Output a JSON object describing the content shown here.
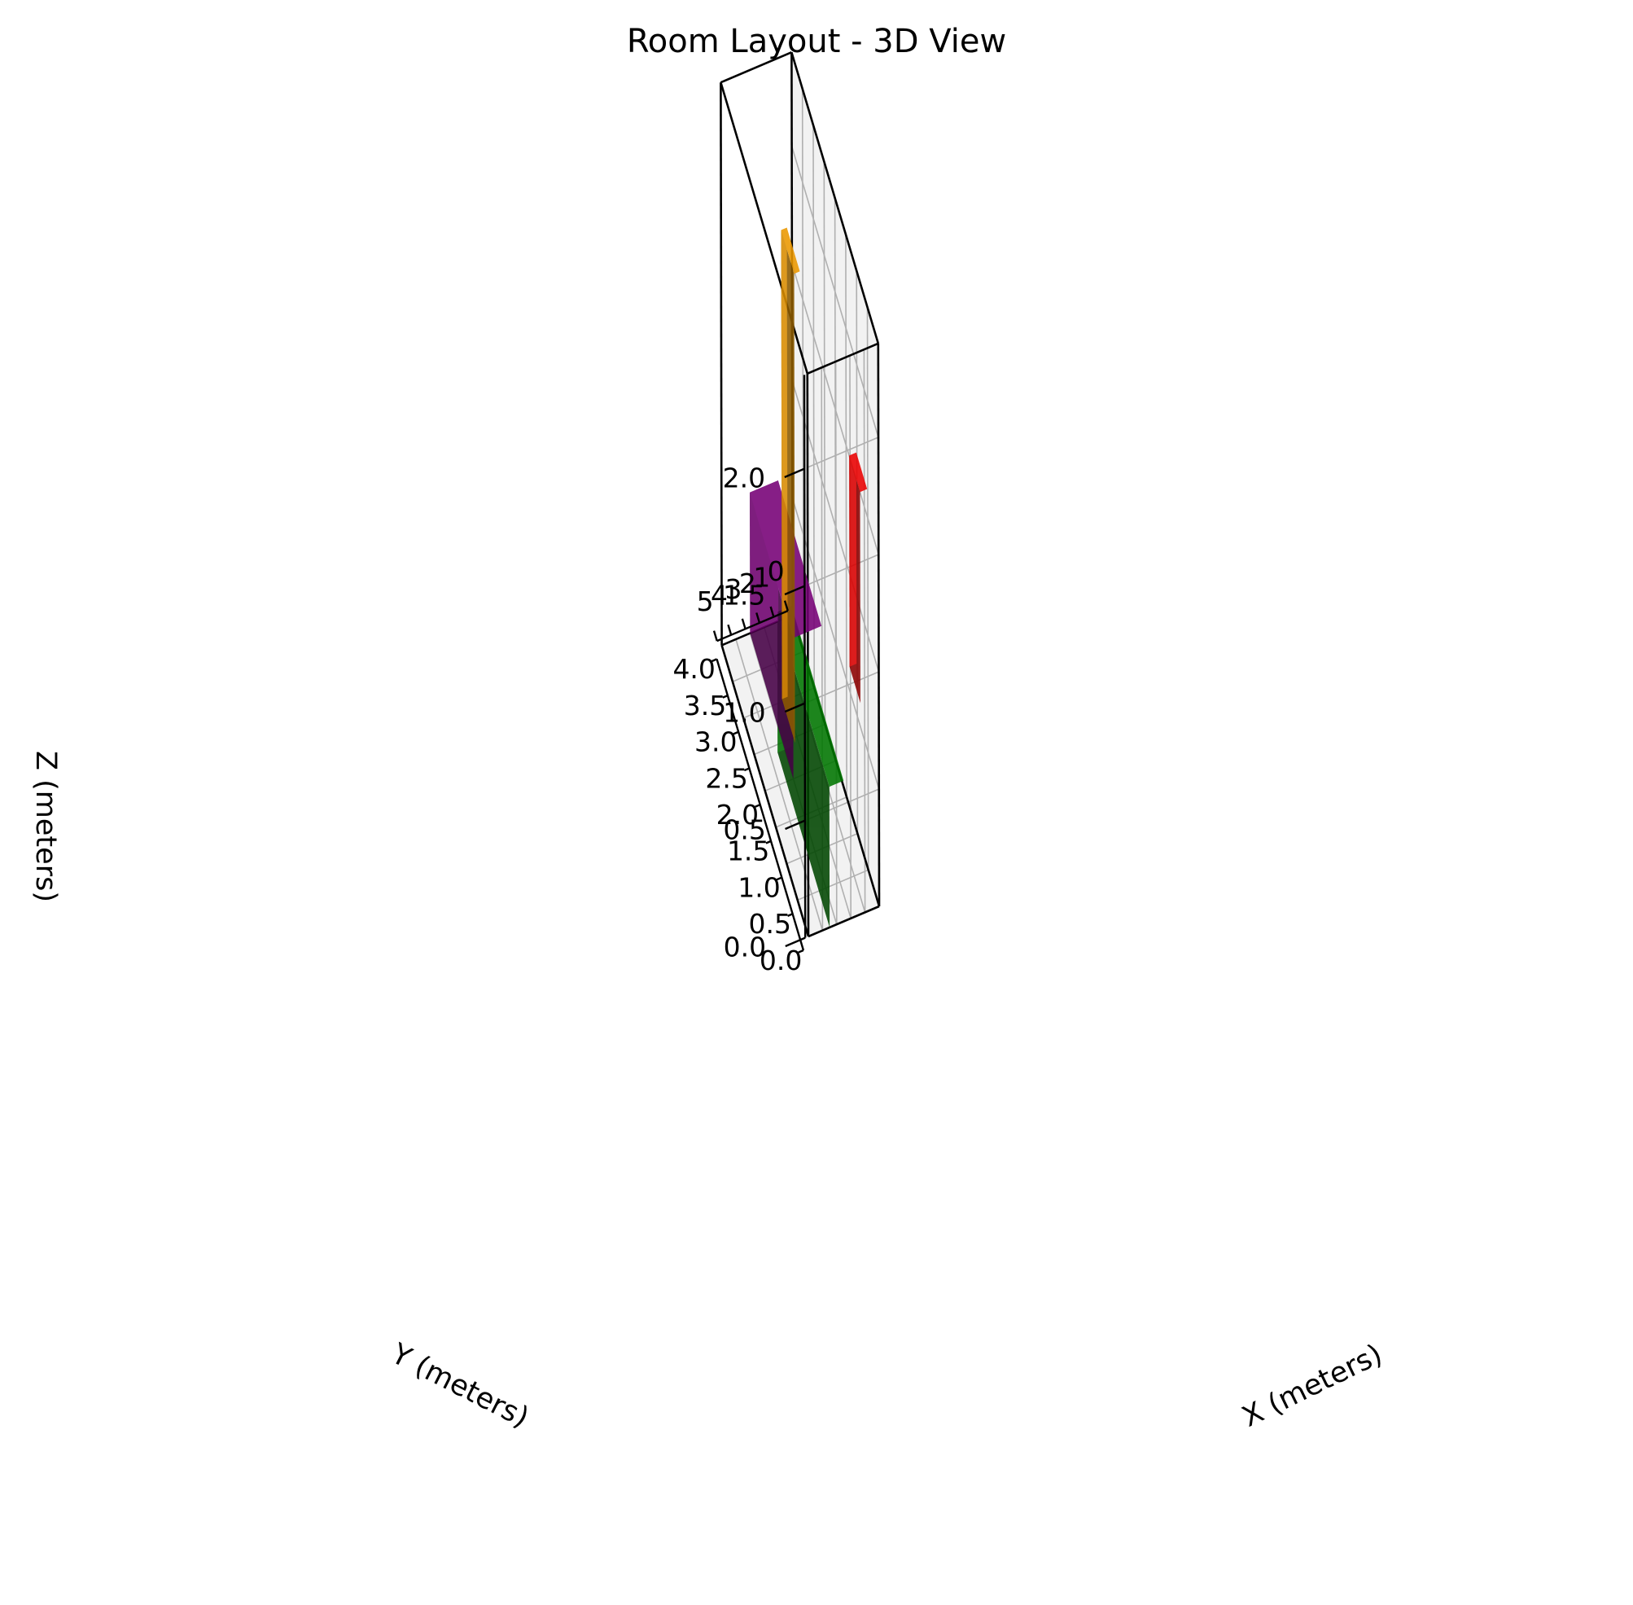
{
  "chart_data": {
    "type": "3d-bar",
    "title": "Room Layout - 3D View",
    "xlabel": "X (meters)",
    "ylabel": "Y (meters)",
    "zlabel": "Z (meters)",
    "xlim": [
      0,
      5
    ],
    "ylim": [
      0,
      4
    ],
    "zlim": [
      0,
      2.4
    ],
    "x_ticks": [
      "0",
      "1",
      "2",
      "3",
      "4",
      "5"
    ],
    "y_ticks": [
      "0.0",
      "0.5",
      "1.0",
      "1.5",
      "2.0",
      "2.5",
      "3.0",
      "3.5",
      "4.0"
    ],
    "z_ticks": [
      "0.0",
      "0.5",
      "1.0",
      "1.5",
      "2.0"
    ],
    "grid": true,
    "boxes": [
      {
        "x": [
          0.8,
          1.3
        ],
        "y": [
          0,
          0.5
        ],
        "z": [
          0.9,
          1.8
        ],
        "color": "#ff0000"
      },
      {
        "x": [
          2.5,
          3.5
        ],
        "y": [
          0,
          2.4
        ],
        "z": [
          0,
          0.6
        ],
        "color": "#008000"
      },
      {
        "x": [
          4.0,
          4.4
        ],
        "y": [
          1.0,
          1.6
        ],
        "z": [
          0.5,
          2.5
        ],
        "color": "#ffa500"
      },
      {
        "x": [
          1.0,
          3.0
        ],
        "y": [
          2.0,
          4.0
        ],
        "z": [
          0.0,
          0.6
        ],
        "color": "#800080"
      }
    ]
  }
}
